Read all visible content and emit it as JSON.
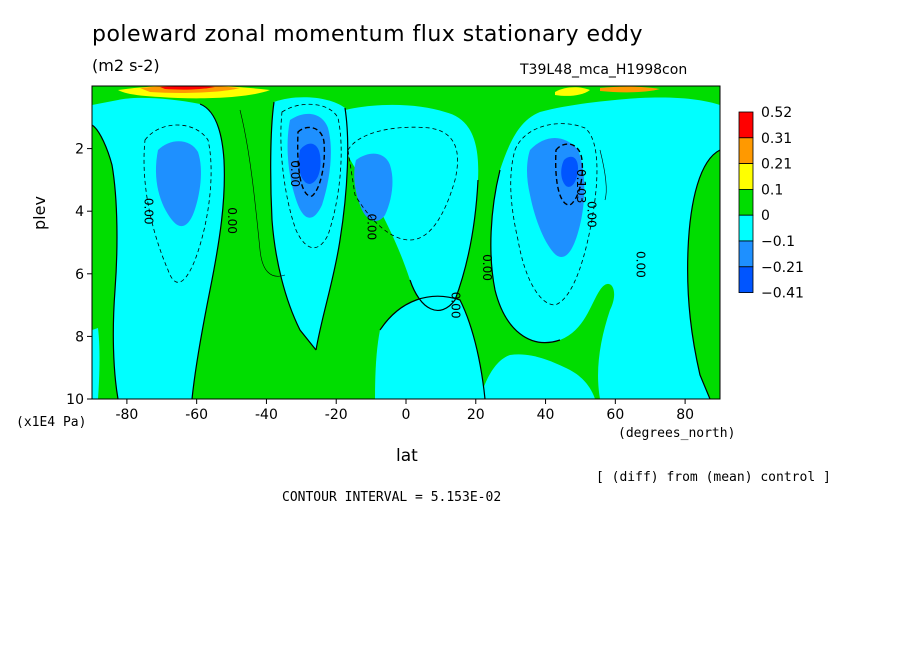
{
  "chart_data": {
    "type": "heatmap",
    "title": "poleward zonal momentum flux stationary eddy",
    "units": "(m2 s-2)",
    "run_label": "T39L48_mca_H1998con",
    "xlabel": "lat",
    "xunit": "(degrees_north)",
    "ylabel": "plev",
    "yunit": "(x1E4 Pa)",
    "xlim": [
      -90,
      90
    ],
    "ylim": [
      10,
      0
    ],
    "x_ticks": [
      -80,
      -60,
      -40,
      -20,
      0,
      20,
      40,
      60,
      80
    ],
    "x_tick_labels": [
      "-80",
      "-60",
      "-40",
      "-20",
      "0",
      "20",
      "40",
      "60",
      "80"
    ],
    "y_ticks": [
      2,
      4,
      6,
      8,
      10
    ],
    "y_tick_labels": [
      "2",
      "4",
      "6",
      "8",
      "10"
    ],
    "diff_note": "[ (diff) from (mean) control ]",
    "contour_interval": "CONTOUR INTERVAL = 5.153E-02",
    "colorbar": {
      "labels": [
        "0.52",
        "0.31",
        "0.21",
        "0.1",
        "0",
        "−0.1",
        "−0.21",
        "−0.41"
      ],
      "colors": [
        "#ff0000",
        "#ff9900",
        "#ffff00",
        "#00dd00",
        "#00ffff",
        "#1e90ff",
        "#0055ff"
      ]
    },
    "contour_labels": [
      {
        "text": "0.00",
        "lat": -75,
        "p": 4.0
      },
      {
        "text": "0.00",
        "lat": -51,
        "p": 4.3
      },
      {
        "text": "0.00",
        "lat": -33,
        "p": 2.8
      },
      {
        "text": "0.00",
        "lat": -11,
        "p": 4.5
      },
      {
        "text": "0.00",
        "lat": 13,
        "p": 7.0
      },
      {
        "text": "0.00",
        "lat": 22,
        "p": 5.8
      },
      {
        "text": "0.103",
        "lat": 49,
        "p": 3.2
      },
      {
        "text": "0.00",
        "lat": 52,
        "p": 4.1
      },
      {
        "text": "0.00",
        "lat": 66,
        "p": 5.7
      }
    ]
  }
}
